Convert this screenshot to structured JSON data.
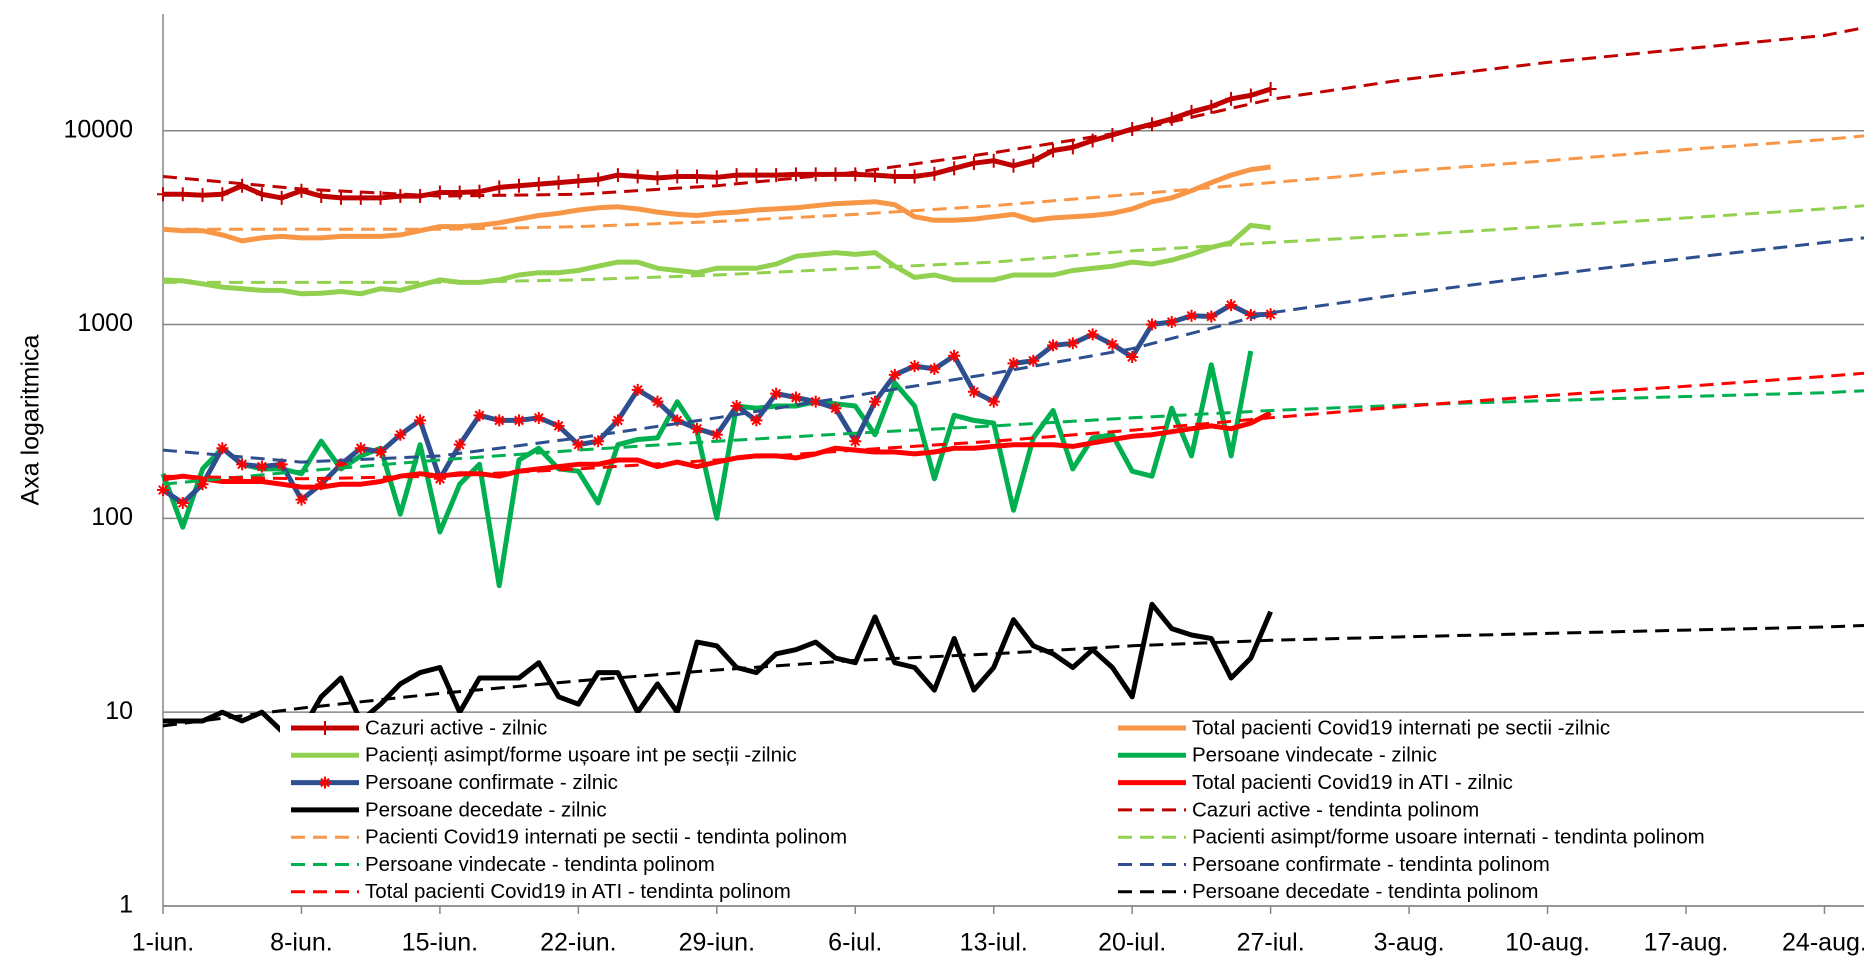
{
  "chart_data": {
    "type": "line",
    "ylabel": "Axa logaritmica",
    "log_scale": true,
    "grid": true,
    "ylim": [
      1,
      40000
    ],
    "yticks": [
      1,
      10,
      100,
      1000,
      10000
    ],
    "xlim": [
      0,
      86
    ],
    "xticks": [
      {
        "value": 0,
        "label": "1-iun."
      },
      {
        "value": 7,
        "label": "8-iun."
      },
      {
        "value": 14,
        "label": "15-iun."
      },
      {
        "value": 21,
        "label": "22-iun."
      },
      {
        "value": 28,
        "label": "29-iun."
      },
      {
        "value": 35,
        "label": "6-iul."
      },
      {
        "value": 42,
        "label": "13-iul."
      },
      {
        "value": 49,
        "label": "20-iul."
      },
      {
        "value": 56,
        "label": "27-iul."
      },
      {
        "value": 63,
        "label": "3-aug."
      },
      {
        "value": 70,
        "label": "10-aug."
      },
      {
        "value": 77,
        "label": "17-aug."
      },
      {
        "value": 84,
        "label": "24-aug."
      }
    ],
    "x": [
      0,
      1,
      2,
      3,
      4,
      5,
      6,
      7,
      8,
      9,
      10,
      11,
      12,
      13,
      14,
      15,
      16,
      17,
      18,
      19,
      20,
      21,
      22,
      23,
      24,
      25,
      26,
      27,
      28,
      29,
      30,
      31,
      32,
      33,
      34,
      35,
      36,
      37,
      38,
      39,
      40,
      41,
      42,
      43,
      44,
      45,
      46,
      47,
      48,
      49,
      50,
      51,
      52,
      53,
      54,
      55,
      56
    ],
    "series": [
      {
        "name": "Cazuri active - zilnic",
        "color": "#c00000",
        "marker": "plus",
        "values": [
          4700,
          4700,
          4650,
          4700,
          5200,
          4700,
          4500,
          4900,
          4600,
          4500,
          4500,
          4500,
          4600,
          4600,
          4800,
          4800,
          4850,
          5100,
          5200,
          5300,
          5400,
          5500,
          5600,
          5900,
          5800,
          5700,
          5800,
          5800,
          5750,
          5900,
          5900,
          5900,
          5950,
          5950,
          5950,
          5950,
          5900,
          5800,
          5800,
          6000,
          6400,
          6800,
          7000,
          6600,
          7000,
          7900,
          8200,
          8900,
          9500,
          10200,
          10800,
          11500,
          12500,
          13300,
          14600,
          15200,
          16400
        ]
      },
      {
        "name": "Total pacienti Covid19 internati pe sectii -zilnic",
        "color": "#f79646",
        "values": [
          3100,
          3050,
          3050,
          2900,
          2700,
          2800,
          2850,
          2800,
          2800,
          2850,
          2850,
          2850,
          2900,
          3050,
          3200,
          3200,
          3250,
          3350,
          3500,
          3650,
          3750,
          3900,
          4000,
          4050,
          3950,
          3800,
          3700,
          3650,
          3750,
          3800,
          3900,
          3950,
          4000,
          4100,
          4200,
          4250,
          4300,
          4150,
          3600,
          3450,
          3450,
          3500,
          3600,
          3700,
          3450,
          3550,
          3600,
          3650,
          3750,
          3950,
          4300,
          4500,
          4900,
          5400,
          5900,
          6300,
          6500
        ]
      },
      {
        "name": "Pacienți asimpt/forme ușoare int pe secții -zilnic",
        "color": "#92d050",
        "values": [
          1700,
          1680,
          1620,
          1560,
          1530,
          1500,
          1500,
          1440,
          1450,
          1480,
          1440,
          1530,
          1500,
          1600,
          1700,
          1650,
          1650,
          1700,
          1800,
          1850,
          1850,
          1900,
          2000,
          2100,
          2100,
          1950,
          1900,
          1850,
          1950,
          1950,
          1950,
          2050,
          2250,
          2300,
          2350,
          2300,
          2350,
          2000,
          1750,
          1800,
          1700,
          1700,
          1700,
          1800,
          1800,
          1800,
          1900,
          1950,
          2000,
          2100,
          2050,
          2150,
          2300,
          2500,
          2650,
          3250,
          3150
        ]
      },
      {
        "name": "Persoane vindecate - zilnic",
        "color": "#00b050",
        "values": [
          170,
          90,
          180,
          230,
          190,
          180,
          180,
          170,
          250,
          180,
          210,
          230,
          105,
          240,
          85,
          150,
          190,
          45,
          200,
          230,
          180,
          175,
          120,
          240,
          255,
          260,
          400,
          280,
          100,
          380,
          370,
          380,
          380,
          400,
          390,
          380,
          270,
          500,
          380,
          160,
          340,
          320,
          310,
          110,
          260,
          360,
          180,
          260,
          270,
          175,
          165,
          370,
          210,
          620,
          210,
          730,
          null
        ]
      },
      {
        "name": "Persoane confirmate - zilnic",
        "color": "#2e4f8f",
        "marker": "star",
        "marker_color": "#ff0000",
        "values": [
          140,
          120,
          150,
          230,
          190,
          185,
          190,
          125,
          150,
          190,
          230,
          220,
          270,
          320,
          160,
          240,
          340,
          320,
          320,
          330,
          300,
          240,
          250,
          320,
          460,
          400,
          320,
          290,
          270,
          380,
          320,
          440,
          420,
          400,
          370,
          250,
          400,
          550,
          610,
          590,
          690,
          450,
          400,
          630,
          650,
          780,
          800,
          890,
          790,
          680,
          1000,
          1030,
          1110,
          1100,
          1260,
          1120,
          1130
        ]
      },
      {
        "name": "Total pacienti Covid19 in ATI - zilnic",
        "color": "#ff0000",
        "values": [
          160,
          165,
          160,
          155,
          155,
          155,
          150,
          145,
          145,
          150,
          150,
          155,
          165,
          170,
          165,
          170,
          170,
          165,
          175,
          180,
          185,
          190,
          190,
          200,
          200,
          185,
          195,
          185,
          195,
          205,
          210,
          210,
          205,
          215,
          230,
          225,
          220,
          220,
          215,
          220,
          230,
          230,
          235,
          240,
          240,
          240,
          235,
          245,
          255,
          265,
          270,
          280,
          290,
          300,
          290,
          310,
          350
        ]
      },
      {
        "name": "Persoane decedate - zilnic",
        "color": "#000000",
        "values": [
          9,
          9,
          9,
          10,
          9,
          10,
          8,
          8,
          12,
          15,
          9,
          11,
          14,
          16,
          17,
          10,
          15,
          15,
          15,
          18,
          12,
          11,
          16,
          16,
          10,
          14,
          10,
          23,
          22,
          17,
          16,
          20,
          21,
          23,
          19,
          18,
          31,
          18,
          17,
          13,
          24,
          13,
          17,
          30,
          22,
          20,
          17,
          21,
          17,
          12,
          36,
          27,
          25,
          24,
          15,
          19,
          33
        ]
      },
      {
        "name": "Cazuri active - tendinta polinom",
        "color": "#c00000",
        "dash": true,
        "x": [
          0,
          7,
          14,
          21,
          28,
          35,
          42,
          49,
          56,
          63,
          70,
          77,
          84,
          86
        ],
        "values": [
          5800,
          5000,
          4600,
          4700,
          5200,
          6100,
          7700,
          10000,
          14500,
          18500,
          22500,
          26500,
          31000,
          34000
        ]
      },
      {
        "name": "Pacienti Covid19 internati pe sectii - tendinta polinom",
        "color": "#f79646",
        "dash": true,
        "x": [
          0,
          7,
          14,
          21,
          28,
          35,
          42,
          49,
          56,
          63,
          70,
          77,
          84,
          86
        ],
        "values": [
          3100,
          3100,
          3100,
          3200,
          3400,
          3700,
          4100,
          4700,
          5400,
          6200,
          7000,
          8000,
          9000,
          9400
        ]
      },
      {
        "name": "Pacienti asimpt/forme usoare internati - tendinta polinom",
        "color": "#92d050",
        "dash": true,
        "x": [
          0,
          7,
          14,
          21,
          28,
          35,
          42,
          49,
          56,
          63,
          70,
          77,
          84,
          86
        ],
        "values": [
          1650,
          1650,
          1650,
          1700,
          1800,
          1950,
          2100,
          2400,
          2650,
          2900,
          3200,
          3550,
          3950,
          4100
        ]
      },
      {
        "name": "Persoane vindecate - tendinta polinom",
        "color": "#00b050",
        "dash": true,
        "x": [
          0,
          7,
          14,
          21,
          28,
          35,
          42,
          49,
          56,
          63,
          70,
          77,
          84,
          86
        ],
        "values": [
          150,
          175,
          200,
          225,
          250,
          275,
          300,
          330,
          360,
          385,
          405,
          425,
          445,
          455
        ]
      },
      {
        "name": "Persoane confirmate - tendinta polinom",
        "color": "#2e4f8f",
        "dash": true,
        "x": [
          0,
          7,
          14,
          21,
          28,
          35,
          42,
          49,
          56,
          63,
          70,
          77,
          84,
          86
        ],
        "values": [
          225,
          195,
          210,
          260,
          330,
          430,
          560,
          750,
          1150,
          1450,
          1800,
          2200,
          2650,
          2800
        ]
      },
      {
        "name": "Total pacienti Covid19 in ATI - tendinta polinom",
        "color": "#ff0000",
        "dash": true,
        "x": [
          0,
          7,
          14,
          21,
          28,
          35,
          42,
          49,
          56,
          63,
          70,
          77,
          84,
          86
        ],
        "values": [
          165,
          160,
          165,
          180,
          200,
          225,
          250,
          285,
          330,
          380,
          430,
          480,
          540,
          560
        ]
      },
      {
        "name": "Persoane decedate - tendinta polinom",
        "color": "#000000",
        "dash": true,
        "x": [
          0,
          7,
          14,
          21,
          28,
          35,
          42,
          49,
          56,
          63,
          70,
          77,
          84,
          86
        ],
        "values": [
          8.5,
          10.5,
          12.5,
          14.5,
          16.5,
          18.5,
          20,
          22,
          23.5,
          24.5,
          25.5,
          26.5,
          27.5,
          28
        ]
      }
    ]
  }
}
